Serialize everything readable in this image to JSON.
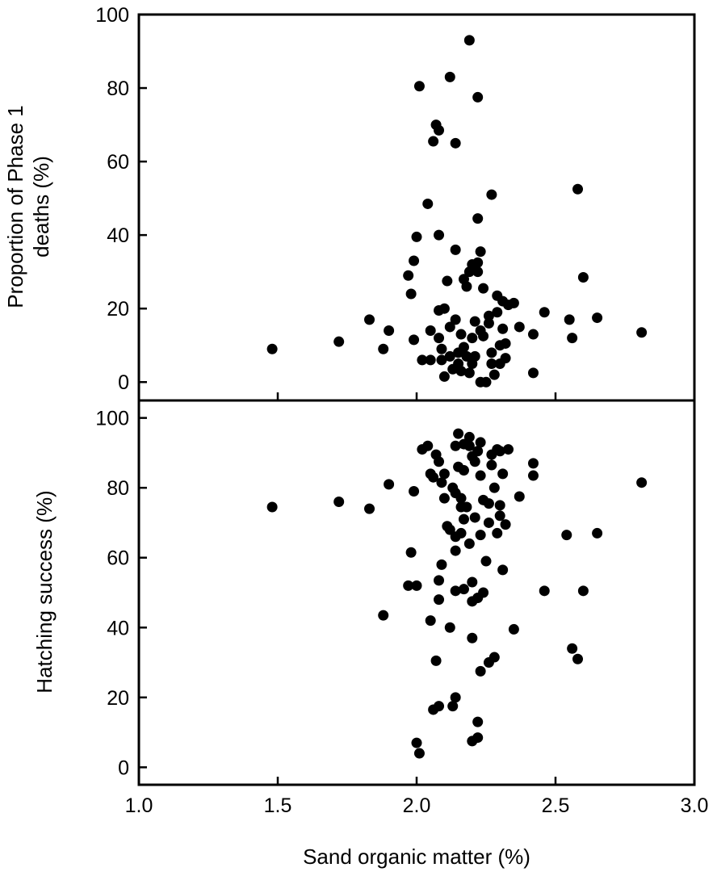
{
  "chart_data": [
    {
      "type": "scatter",
      "ylabel_lines": [
        "Proportion of Phase 1",
        "deaths (%)"
      ],
      "xlabel": "",
      "xlim": [
        1.0,
        3.0
      ],
      "ylim": [
        -5,
        100
      ],
      "yticks": [
        0,
        20,
        40,
        60,
        80,
        100
      ],
      "xticks": [
        1.0,
        1.5,
        2.0,
        2.5,
        3.0
      ],
      "show_x_tick_labels": false,
      "grid": false,
      "marker_color": "#000000",
      "points": [
        [
          1.48,
          9
        ],
        [
          1.72,
          11
        ],
        [
          1.83,
          17
        ],
        [
          1.88,
          9
        ],
        [
          1.9,
          14
        ],
        [
          1.97,
          29
        ],
        [
          1.98,
          24
        ],
        [
          1.99,
          33
        ],
        [
          2.0,
          39.5
        ],
        [
          1.99,
          11.5
        ],
        [
          2.01,
          80.5
        ],
        [
          2.02,
          6
        ],
        [
          2.04,
          48.5
        ],
        [
          2.05,
          6
        ],
        [
          2.05,
          14
        ],
        [
          2.06,
          65.5
        ],
        [
          2.07,
          70
        ],
        [
          2.08,
          68.5
        ],
        [
          2.08,
          40
        ],
        [
          2.08,
          19.5
        ],
        [
          2.08,
          12
        ],
        [
          2.09,
          9
        ],
        [
          2.09,
          6
        ],
        [
          2.1,
          20
        ],
        [
          2.1,
          1.5
        ],
        [
          2.11,
          27.5
        ],
        [
          2.12,
          83
        ],
        [
          2.12,
          15
        ],
        [
          2.12,
          7
        ],
        [
          2.13,
          3.5
        ],
        [
          2.14,
          65
        ],
        [
          2.14,
          36
        ],
        [
          2.14,
          17
        ],
        [
          2.15,
          8
        ],
        [
          2.15,
          5
        ],
        [
          2.16,
          13
        ],
        [
          2.16,
          3
        ],
        [
          2.17,
          28
        ],
        [
          2.17,
          9.5
        ],
        [
          2.18,
          26
        ],
        [
          2.18,
          7
        ],
        [
          2.19,
          30
        ],
        [
          2.19,
          93
        ],
        [
          2.19,
          2.5
        ],
        [
          2.2,
          32
        ],
        [
          2.2,
          12
        ],
        [
          2.2,
          5
        ],
        [
          2.21,
          16.5
        ],
        [
          2.21,
          7
        ],
        [
          2.22,
          77.5
        ],
        [
          2.22,
          44.5
        ],
        [
          2.22,
          32.5
        ],
        [
          2.22,
          30
        ],
        [
          2.23,
          35.5
        ],
        [
          2.23,
          0
        ],
        [
          2.23,
          14
        ],
        [
          2.24,
          25.5
        ],
        [
          2.24,
          12.5
        ],
        [
          2.25,
          0
        ],
        [
          2.26,
          16
        ],
        [
          2.26,
          18
        ],
        [
          2.27,
          51
        ],
        [
          2.27,
          8
        ],
        [
          2.27,
          5
        ],
        [
          2.28,
          2
        ],
        [
          2.29,
          23.5
        ],
        [
          2.29,
          19
        ],
        [
          2.3,
          5
        ],
        [
          2.3,
          10
        ],
        [
          2.31,
          22
        ],
        [
          2.31,
          14.5
        ],
        [
          2.32,
          6.5
        ],
        [
          2.32,
          10.5
        ],
        [
          2.33,
          21
        ],
        [
          2.35,
          21.5
        ],
        [
          2.37,
          15
        ],
        [
          2.42,
          13
        ],
        [
          2.42,
          2.5
        ],
        [
          2.46,
          19
        ],
        [
          2.55,
          17
        ],
        [
          2.56,
          12
        ],
        [
          2.58,
          52.5
        ],
        [
          2.6,
          28.5
        ],
        [
          2.65,
          17.5
        ],
        [
          2.81,
          13.5
        ]
      ]
    },
    {
      "type": "scatter",
      "ylabel": "Hatching success (%)",
      "xlabel": "Sand organic matter (%)",
      "xlim": [
        1.0,
        3.0
      ],
      "ylim": [
        -5,
        105
      ],
      "yticks": [
        0,
        20,
        40,
        60,
        80,
        100
      ],
      "xticks": [
        1.0,
        1.5,
        2.0,
        2.5,
        3.0
      ],
      "xtick_labels": [
        "1.0",
        "1.5",
        "2.0",
        "2.5",
        "3.0"
      ],
      "show_x_tick_labels": true,
      "grid": false,
      "marker_color": "#000000",
      "points": [
        [
          1.48,
          74.5
        ],
        [
          1.72,
          76
        ],
        [
          1.83,
          74
        ],
        [
          1.88,
          43.5
        ],
        [
          1.9,
          81
        ],
        [
          1.97,
          52
        ],
        [
          1.98,
          61.5
        ],
        [
          1.99,
          79
        ],
        [
          2.0,
          52
        ],
        [
          2.0,
          7
        ],
        [
          2.01,
          4
        ],
        [
          2.02,
          91
        ],
        [
          2.04,
          92
        ],
        [
          2.05,
          84
        ],
        [
          2.05,
          42
        ],
        [
          2.06,
          83
        ],
        [
          2.06,
          16.5
        ],
        [
          2.07,
          89.5
        ],
        [
          2.07,
          30.5
        ],
        [
          2.08,
          87.5
        ],
        [
          2.08,
          53.5
        ],
        [
          2.08,
          48
        ],
        [
          2.08,
          17.5
        ],
        [
          2.09,
          58
        ],
        [
          2.09,
          81.5
        ],
        [
          2.1,
          77
        ],
        [
          2.1,
          84
        ],
        [
          2.11,
          69
        ],
        [
          2.12,
          68
        ],
        [
          2.12,
          40
        ],
        [
          2.13,
          80
        ],
        [
          2.13,
          17.5
        ],
        [
          2.14,
          92
        ],
        [
          2.14,
          78.5
        ],
        [
          2.14,
          66
        ],
        [
          2.14,
          62
        ],
        [
          2.14,
          50.5
        ],
        [
          2.14,
          20
        ],
        [
          2.15,
          95.5
        ],
        [
          2.15,
          86
        ],
        [
          2.16,
          77
        ],
        [
          2.16,
          74.5
        ],
        [
          2.16,
          67
        ],
        [
          2.17,
          92.5
        ],
        [
          2.17,
          85
        ],
        [
          2.17,
          71
        ],
        [
          2.17,
          51
        ],
        [
          2.18,
          74.5
        ],
        [
          2.19,
          94.5
        ],
        [
          2.19,
          92
        ],
        [
          2.19,
          64
        ],
        [
          2.2,
          89
        ],
        [
          2.2,
          53
        ],
        [
          2.2,
          47.5
        ],
        [
          2.2,
          37
        ],
        [
          2.2,
          7.5
        ],
        [
          2.21,
          87.5
        ],
        [
          2.21,
          71.5
        ],
        [
          2.22,
          90.5
        ],
        [
          2.22,
          48.5
        ],
        [
          2.22,
          13
        ],
        [
          2.22,
          8.5
        ],
        [
          2.23,
          93
        ],
        [
          2.23,
          83.5
        ],
        [
          2.23,
          66.5
        ],
        [
          2.23,
          27.5
        ],
        [
          2.24,
          76.5
        ],
        [
          2.24,
          50
        ],
        [
          2.25,
          59
        ],
        [
          2.26,
          75.5
        ],
        [
          2.26,
          70
        ],
        [
          2.26,
          30
        ],
        [
          2.27,
          89.5
        ],
        [
          2.27,
          86.5
        ],
        [
          2.28,
          80
        ],
        [
          2.28,
          31.5
        ],
        [
          2.29,
          91
        ],
        [
          2.29,
          67
        ],
        [
          2.3,
          90.5
        ],
        [
          2.3,
          75
        ],
        [
          2.3,
          72
        ],
        [
          2.31,
          84
        ],
        [
          2.31,
          56.5
        ],
        [
          2.32,
          69.5
        ],
        [
          2.33,
          91
        ],
        [
          2.35,
          39.5
        ],
        [
          2.37,
          77.5
        ],
        [
          2.42,
          87
        ],
        [
          2.42,
          83.5
        ],
        [
          2.46,
          50.5
        ],
        [
          2.54,
          66.5
        ],
        [
          2.56,
          34
        ],
        [
          2.58,
          31
        ],
        [
          2.6,
          50.5
        ],
        [
          2.65,
          67
        ],
        [
          2.81,
          81.5
        ]
      ]
    }
  ]
}
